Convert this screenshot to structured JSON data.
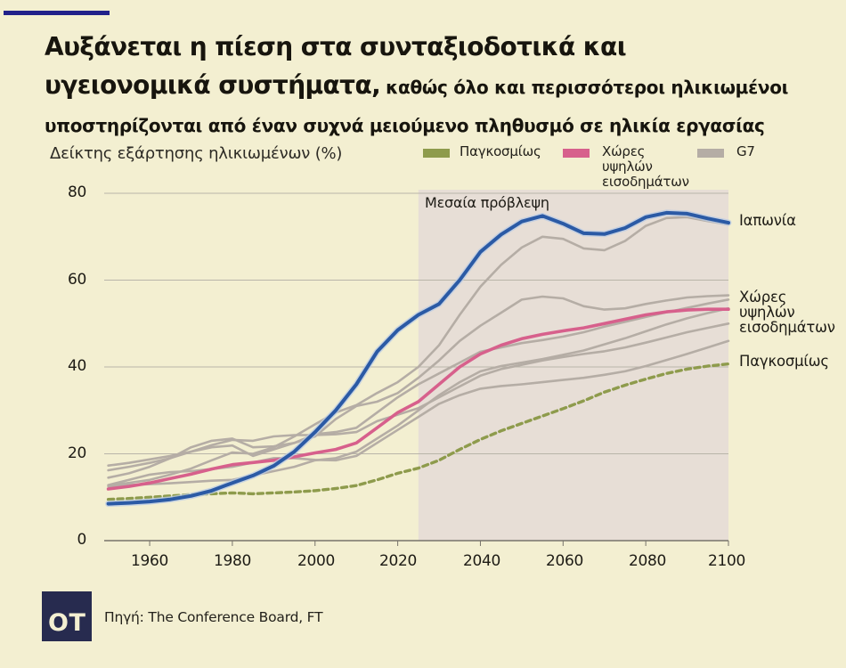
{
  "page": {
    "background": "#f3efd1",
    "accent_bar_color": "#21218a"
  },
  "header": {
    "title_line1": "Αυξάνεται η πίεση στα συνταξιοδοτικά και",
    "title_line2_bold": "υγειονομικά συστήματα,",
    "title_line2_rest": "καθώς όλο και περισσότεροι ηλικιωμένοι υποστηρίζονται από έναν συχνά μειούμενο πληθυσμό σε ηλικία εργασίας"
  },
  "chart_data": {
    "type": "line",
    "title": "Δείκτης εξάρτησης ηλικιωμένων (%)",
    "xlabel": "",
    "ylabel": "%",
    "xlim": [
      1949,
      2100
    ],
    "ylim": [
      0,
      80
    ],
    "x_ticks": [
      1960,
      1980,
      2000,
      2020,
      2040,
      2060,
      2080,
      2100
    ],
    "y_ticks": [
      0,
      20,
      40,
      60,
      80
    ],
    "grid": "horizontal",
    "forecast_start": 2025,
    "forecast_label": "Μεσαία πρόβλεψη",
    "colors": {
      "grid": "#b9b5a9",
      "axis": "#77736a",
      "forecast_band": "#e7ded6",
      "world": "#8e9b4c",
      "high_income": "#d7608c",
      "g7": "#b5ada5",
      "japan": "#2b5aa5"
    },
    "legend": [
      {
        "label": "Παγκοσμίως",
        "color": "#8e9b4c"
      },
      {
        "label": "Χώρες υψηλών εισοδημάτων",
        "color": "#d7608c"
      },
      {
        "label": "G7",
        "color": "#b5ada5"
      }
    ],
    "right_labels": [
      "Ιαπωνία",
      "Χώρες υψηλών εισοδημάτων",
      "Παγκοσμίως"
    ],
    "x": [
      1950,
      1955,
      1960,
      1965,
      1970,
      1975,
      1980,
      1985,
      1990,
      1995,
      2000,
      2005,
      2010,
      2015,
      2020,
      2025,
      2030,
      2035,
      2040,
      2045,
      2050,
      2055,
      2060,
      2065,
      2070,
      2075,
      2080,
      2085,
      2090,
      2095,
      2100
    ],
    "series": [
      {
        "id": "g7-1",
        "name": "G7 μέλος",
        "color": "#b5ada5",
        "width": 2.6,
        "values": [
          12.7,
          13.3,
          14.0,
          15.2,
          16.6,
          18.5,
          20.3,
          20.0,
          21.5,
          24.0,
          26.8,
          29.5,
          31.2,
          34.0,
          36.5,
          40.0,
          45.0,
          52.0,
          58.5,
          63.5,
          67.5,
          70.0,
          69.5,
          67.3,
          66.9,
          69.0,
          72.5,
          74.3,
          74.5,
          73.6,
          72.8
        ]
      },
      {
        "id": "g7-2",
        "name": "G7 μέλος",
        "color": "#b5ada5",
        "width": 2.6,
        "values": [
          14.5,
          15.5,
          17.0,
          19.0,
          21.5,
          23.0,
          23.5,
          21.5,
          21.7,
          22.5,
          24.0,
          28.0,
          31.0,
          32.0,
          34.0,
          37.5,
          41.5,
          46.0,
          49.5,
          52.5,
          55.5,
          56.2,
          55.8,
          54.0,
          53.2,
          53.5,
          54.5,
          55.3,
          56.0,
          56.3,
          56.5
        ]
      },
      {
        "id": "g7-3",
        "name": "G7 μέλος",
        "color": "#b5ada5",
        "width": 2.6,
        "values": [
          17.3,
          17.9,
          18.7,
          19.5,
          20.5,
          21.5,
          21.9,
          19.5,
          21.0,
          22.5,
          24.5,
          25.0,
          26.0,
          29.5,
          33.0,
          36.0,
          38.5,
          41.0,
          43.5,
          44.5,
          45.5,
          46.2,
          47.0,
          48.0,
          49.3,
          50.4,
          51.5,
          52.6,
          53.6,
          54.6,
          55.5
        ]
      },
      {
        "id": "g7-4",
        "name": "G7 μέλος",
        "color": "#b5ada5",
        "width": 2.6,
        "values": [
          12.5,
          12.8,
          13.0,
          13.2,
          13.5,
          13.8,
          14.0,
          15.0,
          16.0,
          17.0,
          18.5,
          19.0,
          20.5,
          23.5,
          26.5,
          30.0,
          33.5,
          36.5,
          39.0,
          40.2,
          41.0,
          41.8,
          42.8,
          43.8,
          45.2,
          46.6,
          48.2,
          49.8,
          51.2,
          52.4,
          53.5
        ]
      },
      {
        "id": "g7-5",
        "name": "G7 μέλος",
        "color": "#b5ada5",
        "width": 2.6,
        "values": [
          16.2,
          17.0,
          17.9,
          19.0,
          20.5,
          22.0,
          23.2,
          23.0,
          24.0,
          24.3,
          24.3,
          24.5,
          25.0,
          27.5,
          29.0,
          30.5,
          33.0,
          35.5,
          38.0,
          39.5,
          40.5,
          41.5,
          42.3,
          43.0,
          43.6,
          44.5,
          45.6,
          46.8,
          48.0,
          49.0,
          50.0
        ]
      },
      {
        "id": "g7-6",
        "name": "G7 μέλος",
        "color": "#b5ada5",
        "width": 2.6,
        "values": [
          12.8,
          14.0,
          15.2,
          15.8,
          16.0,
          16.5,
          17.0,
          18.0,
          19.0,
          19.0,
          18.6,
          18.5,
          19.5,
          22.5,
          25.5,
          28.5,
          31.5,
          33.5,
          35.0,
          35.6,
          36.0,
          36.5,
          37.0,
          37.5,
          38.2,
          39.0,
          40.2,
          41.6,
          43.0,
          44.5,
          46.0
        ]
      },
      {
        "id": "high-income",
        "name": "Χώρες υψηλών εισοδημάτων",
        "color": "#d7608c",
        "width": 3.6,
        "values": [
          11.9,
          12.5,
          13.3,
          14.3,
          15.3,
          16.5,
          17.5,
          18.0,
          18.5,
          19.3,
          20.2,
          21.0,
          22.5,
          26.0,
          29.5,
          32.0,
          36.0,
          40.0,
          43.0,
          45.0,
          46.5,
          47.5,
          48.3,
          49.0,
          50.0,
          51.0,
          52.0,
          52.7,
          53.1,
          53.3,
          53.3
        ]
      },
      {
        "id": "world",
        "name": "Παγκοσμίως",
        "color": "#8e9b4c",
        "width": 3.4,
        "dash": "6 4.5",
        "values": [
          9.5,
          9.7,
          10.0,
          10.3,
          10.6,
          10.8,
          11.0,
          10.8,
          11.0,
          11.2,
          11.5,
          12.0,
          12.7,
          14.0,
          15.5,
          16.7,
          18.5,
          21.0,
          23.3,
          25.3,
          27.0,
          28.7,
          30.4,
          32.2,
          34.2,
          35.8,
          37.2,
          38.5,
          39.5,
          40.2,
          40.7
        ]
      },
      {
        "id": "japan",
        "name": "Ιαπωνία",
        "color": "#2b5aa5",
        "width": 4,
        "casing": "#b9cbe4",
        "values": [
          8.5,
          8.7,
          9.0,
          9.5,
          10.3,
          11.5,
          13.3,
          15.0,
          17.2,
          20.5,
          25.0,
          30.0,
          36.0,
          43.5,
          48.5,
          52.0,
          54.5,
          60.0,
          66.5,
          70.5,
          73.5,
          74.8,
          73.0,
          70.8,
          70.6,
          72.0,
          74.5,
          75.5,
          75.3,
          74.2,
          73.2
        ]
      }
    ]
  },
  "footer": {
    "logo_text": "OT",
    "logo_color": "#272b4f",
    "logo_text_color": "#f3efd1",
    "source": "Πηγή: The Conference Board, FT"
  }
}
